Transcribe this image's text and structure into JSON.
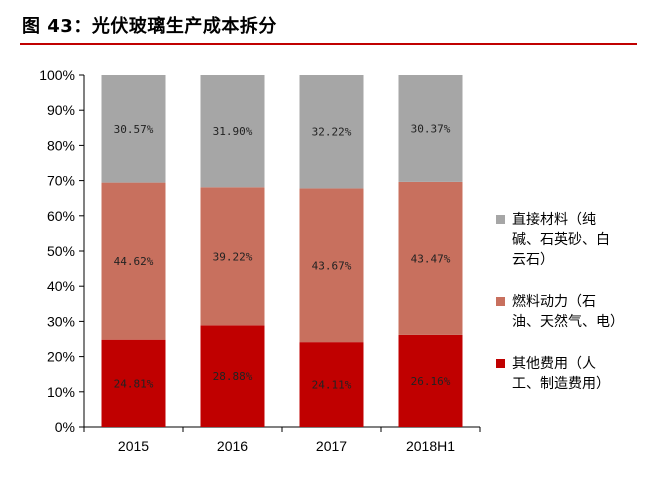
{
  "title": "图 43：光伏玻璃生产成本拆分",
  "colors": {
    "title_rule": "#c00000"
  },
  "chart_data": {
    "type": "bar",
    "stacked": true,
    "categories": [
      "2015",
      "2016",
      "2017",
      "2018H1"
    ],
    "series": [
      {
        "name": "其他费用（人工、制造费用）",
        "values": [
          24.81,
          28.88,
          24.11,
          26.16
        ],
        "labels": [
          "24.81%",
          "28.88%",
          "24.11%",
          "26.16%"
        ],
        "color": "#c00000"
      },
      {
        "name": "燃料动力（石油、天然气、电）",
        "values": [
          44.62,
          39.22,
          43.67,
          43.47
        ],
        "labels": [
          "44.62%",
          "39.22%",
          "43.67%",
          "43.47%"
        ],
        "color": "#c8705e"
      },
      {
        "name": "直接材料（纯碱、石英砂、白云石）",
        "values": [
          30.57,
          31.9,
          32.22,
          30.37
        ],
        "labels": [
          "30.57%",
          "31.90%",
          "32.22%",
          "30.37%"
        ],
        "color": "#a6a6a6"
      }
    ],
    "y_ticks": [
      "0%",
      "10%",
      "20%",
      "30%",
      "40%",
      "50%",
      "60%",
      "70%",
      "80%",
      "90%",
      "100%"
    ],
    "ylim": [
      0,
      100
    ],
    "grid": false,
    "legend_position": "right"
  },
  "legend": [
    {
      "lines": [
        "直接材料（纯",
        "碱、石英砂、白",
        "云石）"
      ],
      "color": "#a6a6a6"
    },
    {
      "lines": [
        "燃料动力（石",
        "油、天然气、电）"
      ],
      "color": "#c8705e"
    },
    {
      "lines": [
        "其他费用（人",
        "工、制造费用）"
      ],
      "color": "#c00000"
    }
  ]
}
